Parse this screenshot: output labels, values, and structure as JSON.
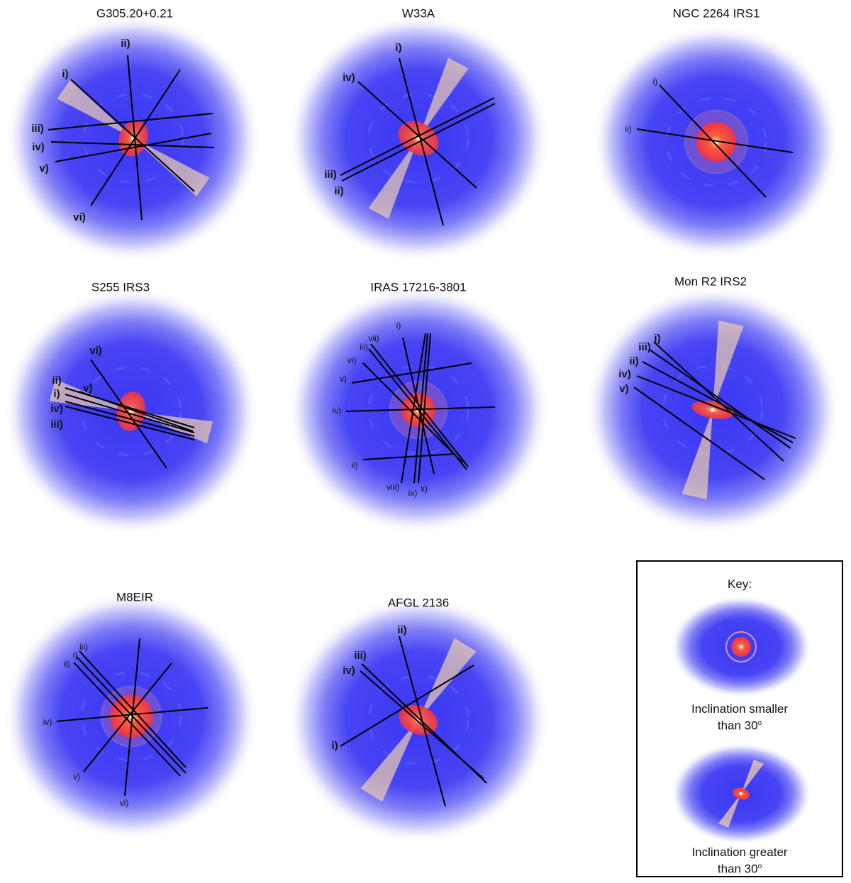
{
  "colors": {
    "envelope": "#3a37f5",
    "disk": "#ff4a3a",
    "outflow": "#e8c8a8",
    "line": "#000000"
  },
  "panels": [
    {
      "title": "G305.20+0.21",
      "inclination": "greater than 30",
      "lines": [
        {
          "label": "ii)"
        },
        {
          "label": "i)"
        },
        {
          "label": "iii)"
        },
        {
          "label": "iv)"
        },
        {
          "label": "v)"
        },
        {
          "label": "vi)"
        }
      ]
    },
    {
      "title": "W33A",
      "inclination": "greater than 30",
      "lines": [
        {
          "label": "i)"
        },
        {
          "label": "iv)"
        },
        {
          "label": "iii)"
        },
        {
          "label": "ii)"
        }
      ]
    },
    {
      "title": "NGC 2264 IRS1",
      "inclination": "smaller than 30",
      "lines": [
        {
          "label": "i)"
        },
        {
          "label": "ii)"
        }
      ]
    },
    {
      "title": "S255 IRS3",
      "inclination": "greater than 30",
      "lines": [
        {
          "label": "vi)"
        },
        {
          "label": "ii)"
        },
        {
          "label": "i)"
        },
        {
          "label": "v)"
        },
        {
          "label": "iv)"
        },
        {
          "label": "iii)"
        }
      ]
    },
    {
      "title": "IRAS 17216-3801",
      "inclination": "smaller than 30",
      "lines": [
        {
          "label": "i)"
        },
        {
          "label": "vii)"
        },
        {
          "label": "iii)"
        },
        {
          "label": "vi)"
        },
        {
          "label": "v)"
        },
        {
          "label": "iv)"
        },
        {
          "label": "ii)"
        },
        {
          "label": "viii)"
        },
        {
          "label": "ix)"
        },
        {
          "label": "x)"
        }
      ]
    },
    {
      "title": "Mon R2 IRS2",
      "inclination": "greater than 30",
      "lines": [
        {
          "label": "i)"
        },
        {
          "label": "iii)"
        },
        {
          "label": "ii)"
        },
        {
          "label": "iv)"
        },
        {
          "label": "v)"
        }
      ]
    },
    {
      "title": "M8EIR",
      "inclination": "smaller than 30",
      "lines": [
        {
          "label": "iii)"
        },
        {
          "label": "i)"
        },
        {
          "label": "ii)"
        },
        {
          "label": "iv)"
        },
        {
          "label": "v)"
        },
        {
          "label": "vi)"
        }
      ]
    },
    {
      "title": "AFGL 2136",
      "inclination": "greater than 30",
      "lines": [
        {
          "label": "ii)"
        },
        {
          "label": "iii)"
        },
        {
          "label": "iv)"
        },
        {
          "label": "i)"
        }
      ]
    }
  ],
  "key": {
    "title": "Key:",
    "small_caption_line1": "Inclination smaller",
    "small_caption_line2": "than 30",
    "large_caption_line1": "Inclination greater",
    "large_caption_line2": "than 30",
    "degree_symbol": "o"
  }
}
